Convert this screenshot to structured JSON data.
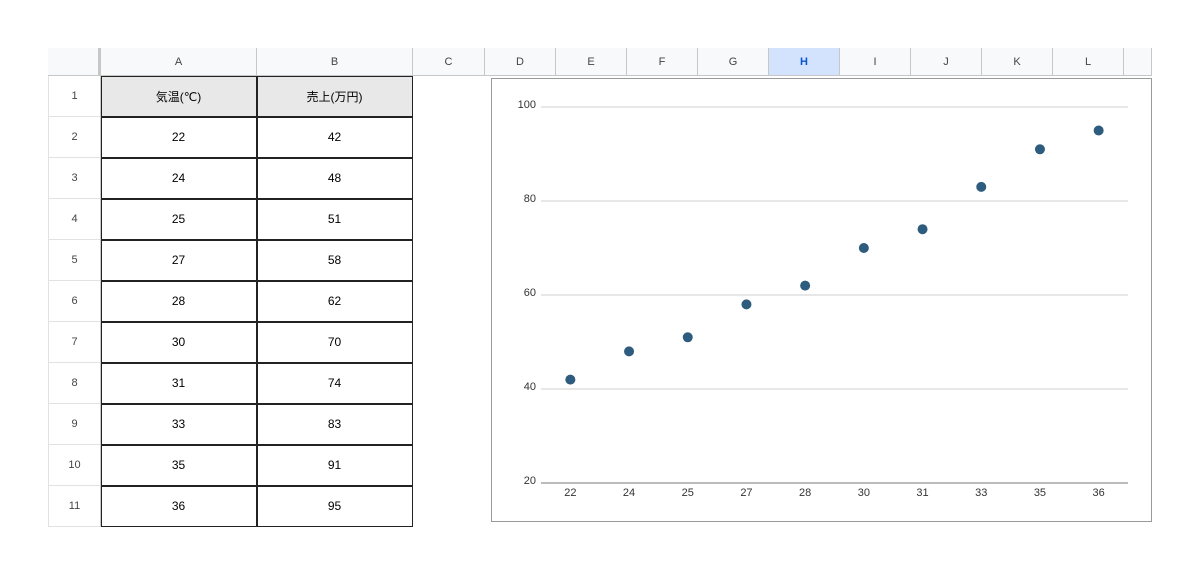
{
  "spreadsheet": {
    "column_headers": [
      "A",
      "B",
      "C",
      "D",
      "E",
      "F",
      "G",
      "H",
      "I",
      "J",
      "K",
      "L"
    ],
    "row_headers": [
      "1",
      "2",
      "3",
      "4",
      "5",
      "6",
      "7",
      "8",
      "9",
      "10",
      "11"
    ],
    "table": {
      "header": [
        "気温(℃)",
        "売上(万円)"
      ],
      "rows": [
        [
          22,
          42
        ],
        [
          24,
          48
        ],
        [
          25,
          51
        ],
        [
          27,
          58
        ],
        [
          28,
          62
        ],
        [
          30,
          70
        ],
        [
          31,
          74
        ],
        [
          33,
          83
        ],
        [
          35,
          91
        ],
        [
          36,
          95
        ]
      ]
    }
  },
  "chart_data": {
    "type": "scatter",
    "categories": [
      "22",
      "24",
      "25",
      "27",
      "28",
      "30",
      "31",
      "33",
      "35",
      "36"
    ],
    "values": [
      42,
      48,
      51,
      58,
      62,
      70,
      74,
      83,
      91,
      95
    ],
    "color": "#2e5c7e",
    "ylim": [
      20,
      100
    ],
    "yticks": [
      20,
      40,
      60,
      80,
      100
    ],
    "grid": true
  }
}
